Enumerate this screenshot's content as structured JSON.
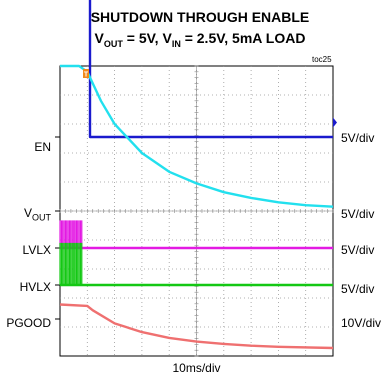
{
  "chart_data": {
    "type": "line",
    "title": "SHUTDOWN THROUGH ENABLE",
    "subtitle_parts": {
      "vout_base": "V",
      "vout_sub": "OUT",
      "vout_rest": " = 5V, ",
      "vin_base": "V",
      "vin_sub": "IN",
      "vin_rest": " = 2.5V, 5mA LOAD"
    },
    "figure_tag": "toc25",
    "trigger_marker": "T",
    "xlabel": "10ms/div",
    "x_divisions": 10,
    "y_divisions": 10,
    "xlim": [
      0,
      100
    ],
    "x_unit": "ms",
    "grid": true,
    "channels": [
      {
        "name": "EN",
        "scale": "5V/div",
        "color": "#1a1acd",
        "points": [
          [
            0,
            5
          ],
          [
            11,
            5
          ],
          [
            11,
            0
          ],
          [
            100,
            0
          ]
        ]
      },
      {
        "name": "V_OUT",
        "label_base": "V",
        "label_sub": "OUT",
        "scale": "5V/div",
        "color": "#22e0ee",
        "points": [
          [
            0,
            5
          ],
          [
            7,
            5
          ],
          [
            10,
            4.8
          ],
          [
            15,
            3.8
          ],
          [
            20,
            3.0
          ],
          [
            30,
            2.0
          ],
          [
            40,
            1.35
          ],
          [
            50,
            0.95
          ],
          [
            60,
            0.65
          ],
          [
            70,
            0.45
          ],
          [
            80,
            0.3
          ],
          [
            90,
            0.2
          ],
          [
            100,
            0.15
          ]
        ]
      },
      {
        "name": "LVLX",
        "scale": "5V/div",
        "color": "#e31ae3",
        "burst": {
          "start": 0,
          "end": 8,
          "high": 0.95
        },
        "points": [
          [
            0,
            0
          ],
          [
            100,
            0
          ]
        ]
      },
      {
        "name": "HVLX",
        "scale": "5V/div",
        "color": "#14c814",
        "burst": {
          "start": 0,
          "end": 8,
          "high": 1.45
        },
        "points": [
          [
            0,
            0
          ],
          [
            100,
            0
          ]
        ]
      },
      {
        "name": "PGOOD",
        "scale": "10V/div",
        "color": "#ef7070",
        "points": [
          [
            0,
            0.5
          ],
          [
            10,
            0.45
          ],
          [
            12,
            0.3
          ],
          [
            20,
            -0.15
          ],
          [
            30,
            -0.45
          ],
          [
            40,
            -0.65
          ],
          [
            50,
            -0.78
          ],
          [
            60,
            -0.86
          ],
          [
            70,
            -0.92
          ],
          [
            80,
            -0.96
          ],
          [
            100,
            -1.0
          ]
        ]
      }
    ]
  }
}
